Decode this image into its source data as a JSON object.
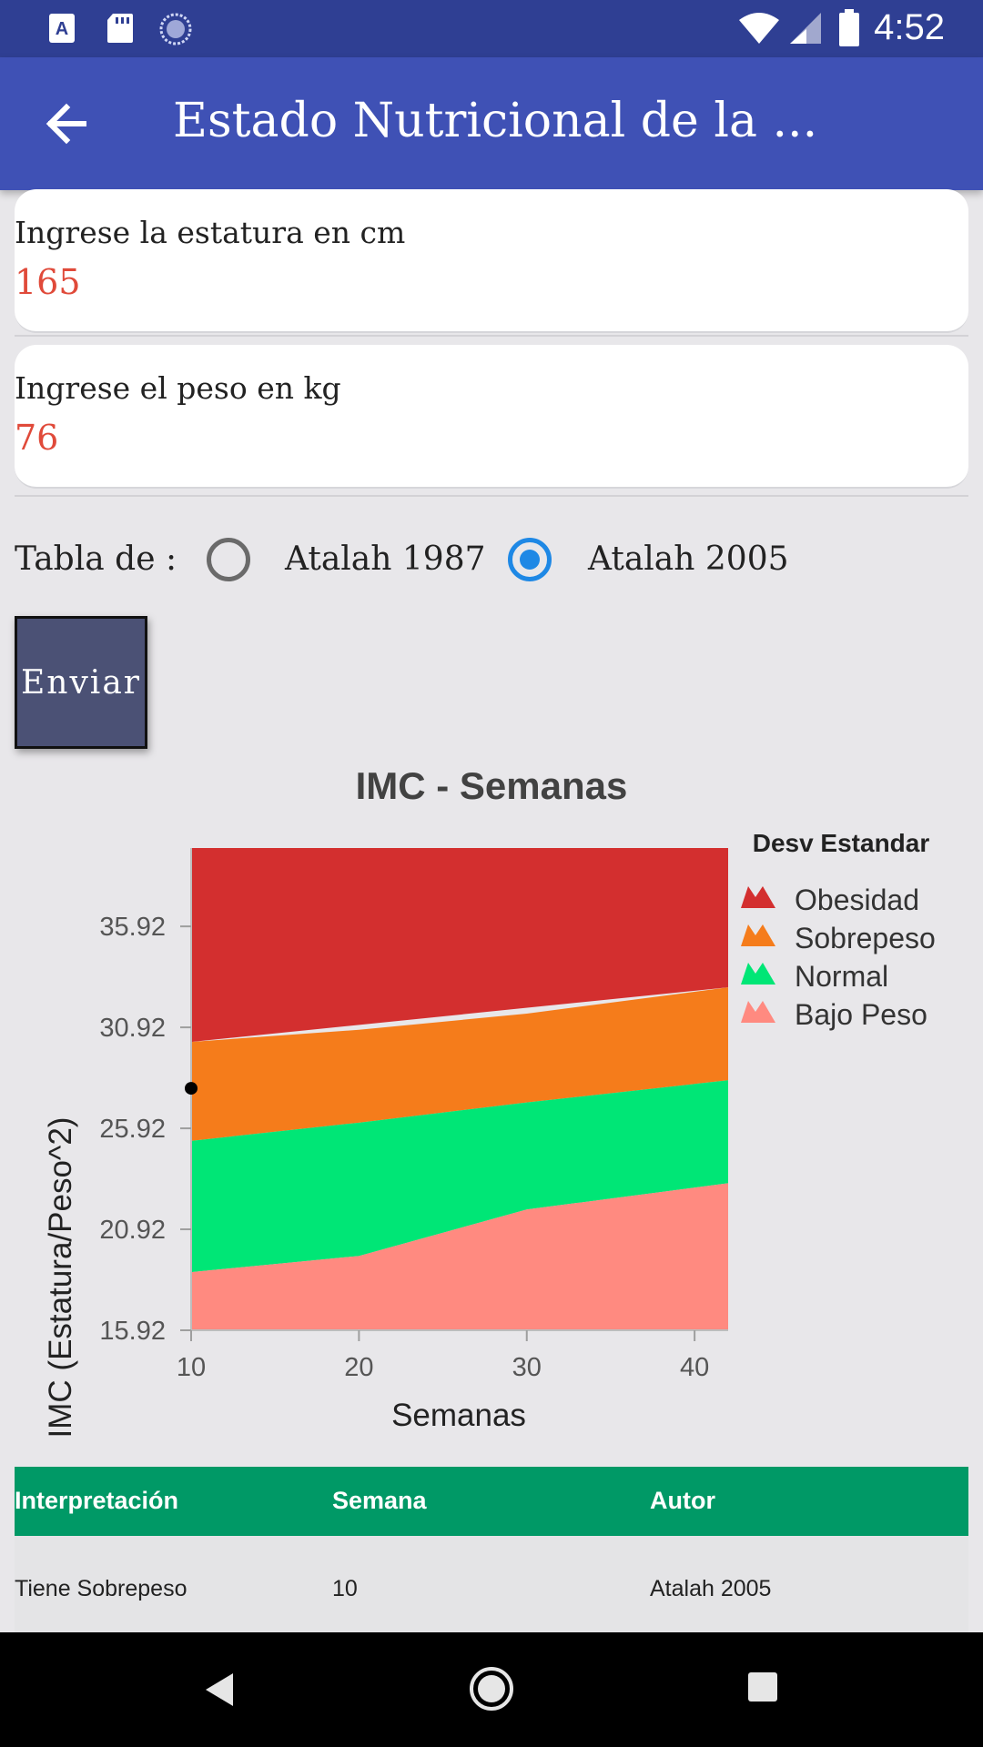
{
  "status_bar": {
    "time": "4:52"
  },
  "app_bar": {
    "title": "Estado Nutricional de la ..."
  },
  "height_field": {
    "label": "Ingrese la estatura en cm",
    "value": "165"
  },
  "weight_field": {
    "label": "Ingrese el peso en kg",
    "value": "76"
  },
  "table_selector": {
    "label": "Tabla de :",
    "options": [
      {
        "label": "Atalah 1987",
        "selected": false
      },
      {
        "label": "Atalah 2005",
        "selected": true
      }
    ]
  },
  "submit_label": "Enviar",
  "chart_data": {
    "type": "area",
    "title": "IMC - Semanas",
    "xlabel": "Semanas",
    "ylabel": "IMC (Estatura/Peso^2)",
    "x_ticks": [
      "10",
      "20",
      "30",
      "40"
    ],
    "y_ticks": [
      "15.92",
      "20.92",
      "25.92",
      "30.92",
      "35.92"
    ],
    "xlim": [
      10,
      42
    ],
    "ylim": [
      15.92,
      39.8
    ],
    "legend_title": "Desv Estandar",
    "legend_position": "right",
    "series": [
      {
        "name": "Obesidad",
        "color": "#d32f2f",
        "x": [
          10,
          42
        ],
        "upper": [
          39.8,
          39.8
        ],
        "lower": [
          30.2,
          32.9
        ]
      },
      {
        "name": "Sobrepeso",
        "color": "#f57c1b",
        "x": [
          10,
          20,
          30,
          42
        ],
        "upper": [
          30.2,
          30.8,
          31.6,
          32.9
        ],
        "lower": [
          25.3,
          26.2,
          27.2,
          28.3
        ]
      },
      {
        "name": "Normal",
        "color": "#00e676",
        "x": [
          10,
          20,
          30,
          42
        ],
        "upper": [
          25.3,
          26.2,
          27.2,
          28.3
        ],
        "lower": [
          18.8,
          19.6,
          21.9,
          23.2
        ]
      },
      {
        "name": "Bajo Peso",
        "color": "#ff8a80",
        "x": [
          10,
          20,
          30,
          42
        ],
        "upper": [
          18.8,
          19.6,
          21.9,
          23.2
        ],
        "lower": [
          15.92,
          15.92,
          15.92,
          15.92
        ]
      }
    ],
    "points": [
      {
        "x": 10,
        "y": 27.9
      }
    ]
  },
  "results_table": {
    "headers": [
      "Interpretación",
      "Semana",
      "Autor"
    ],
    "rows": [
      [
        "Tiene Sobrepeso",
        "10",
        "Atalah 2005"
      ]
    ]
  }
}
